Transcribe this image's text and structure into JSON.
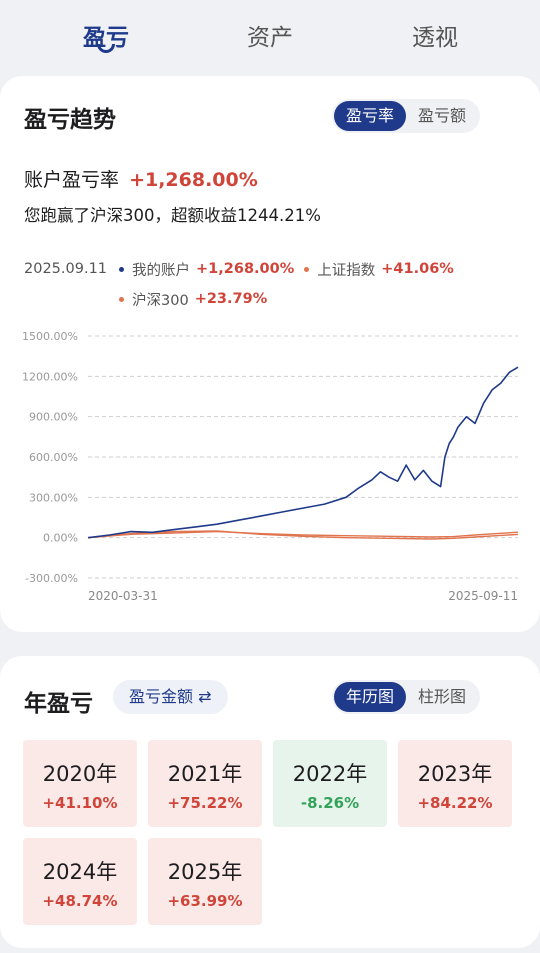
{
  "top_tabs": [
    {
      "label": "盈亏",
      "active": true
    },
    {
      "label": "资产",
      "active": false
    },
    {
      "label": "透视",
      "active": false
    }
  ],
  "trend": {
    "title": "盈亏趋势",
    "segment": [
      "盈亏率",
      "盈亏额"
    ],
    "segment_active": 0,
    "rate_label": "账户盈亏率",
    "rate_value": "+1,268.00%",
    "beat_text": "您跑赢了沪深300，超额收益1244.21%",
    "legend": {
      "date": "2025.09.11",
      "items": [
        {
          "name": "我的账户",
          "value": "+1,268.00%",
          "color": "#1f3a8a"
        },
        {
          "name": "上证指数",
          "value": "+41.06%",
          "color": "#e0744f"
        },
        {
          "name": "沪深300",
          "value": "+23.79%",
          "color": "#e0744f"
        }
      ]
    }
  },
  "chart_data": {
    "type": "line",
    "y_ticks": [
      "1500.00%",
      "1200.00%",
      "900.00%",
      "600.00%",
      "300.00%",
      "0.00%",
      "-300.00%"
    ],
    "x_ticks": [
      "2020-03-31",
      "2025-09-11"
    ],
    "ylim": [
      -300,
      1500
    ],
    "grid": true,
    "series": [
      {
        "name": "我的账户",
        "color": "#1f3a8a",
        "x": [
          0.0,
          0.05,
          0.1,
          0.15,
          0.2,
          0.25,
          0.3,
          0.35,
          0.4,
          0.45,
          0.5,
          0.55,
          0.6,
          0.63,
          0.66,
          0.68,
          0.7,
          0.72,
          0.74,
          0.76,
          0.78,
          0.8,
          0.82,
          0.83,
          0.84,
          0.85,
          0.86,
          0.88,
          0.9,
          0.92,
          0.94,
          0.96,
          0.98,
          1.0
        ],
        "y": [
          0,
          20,
          45,
          40,
          60,
          80,
          100,
          130,
          160,
          190,
          220,
          250,
          300,
          370,
          430,
          490,
          450,
          420,
          540,
          430,
          500,
          420,
          380,
          600,
          700,
          750,
          820,
          900,
          850,
          1000,
          1100,
          1150,
          1230,
          1268
        ]
      },
      {
        "name": "上证指数",
        "color": "#e0744f",
        "x": [
          0.0,
          0.1,
          0.2,
          0.3,
          0.4,
          0.5,
          0.6,
          0.7,
          0.8,
          0.85,
          0.9,
          0.95,
          1.0
        ],
        "y": [
          0,
          25,
          35,
          45,
          30,
          20,
          15,
          10,
          5,
          8,
          20,
          30,
          41
        ]
      },
      {
        "name": "沪深300",
        "color": "#e0744f",
        "x": [
          0.0,
          0.1,
          0.2,
          0.3,
          0.4,
          0.5,
          0.6,
          0.7,
          0.8,
          0.85,
          0.9,
          0.95,
          1.0
        ],
        "y": [
          0,
          30,
          45,
          50,
          25,
          10,
          0,
          -5,
          -10,
          -5,
          5,
          15,
          24
        ]
      }
    ]
  },
  "annual": {
    "title": "年盈亏",
    "toggle_label": "盈亏金额 ⇄",
    "segment": [
      "年历图",
      "柱形图"
    ],
    "segment_active": 0,
    "tiles": [
      {
        "year": "2020年",
        "pct": "+41.10%",
        "sign": "pos"
      },
      {
        "year": "2021年",
        "pct": "+75.22%",
        "sign": "pos"
      },
      {
        "year": "2022年",
        "pct": "-8.26%",
        "sign": "neg"
      },
      {
        "year": "2023年",
        "pct": "+84.22%",
        "sign": "pos"
      },
      {
        "year": "2024年",
        "pct": "+48.74%",
        "sign": "pos"
      },
      {
        "year": "2025年",
        "pct": "+63.99%",
        "sign": "pos"
      }
    ]
  }
}
